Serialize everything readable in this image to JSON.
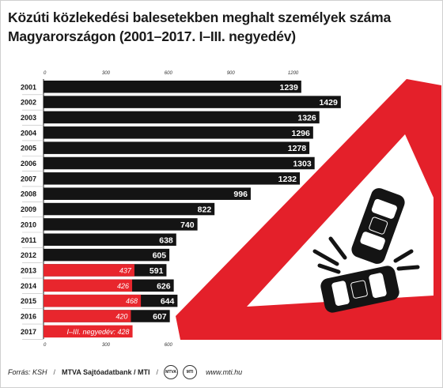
{
  "title_line1": "Közúti közlekedési balesetekben meghalt személyek száma",
  "title_line2": "Magyarországon (2001–2017. I–III. negyedév)",
  "chart_data": {
    "type": "bar",
    "orientation": "horizontal",
    "categories": [
      "2001",
      "2002",
      "2003",
      "2004",
      "2005",
      "2006",
      "2007",
      "2008",
      "2009",
      "2010",
      "2011",
      "2012",
      "2013",
      "2014",
      "2015",
      "2016",
      "2017"
    ],
    "series": [
      {
        "values": [
          1239,
          1429,
          1326,
          1296,
          1278,
          1303,
          1232,
          996,
          822,
          740,
          638,
          605,
          591,
          626,
          644,
          607,
          null
        ],
        "color": "#141414"
      },
      {
        "values": [
          null,
          null,
          null,
          null,
          null,
          null,
          null,
          null,
          null,
          null,
          null,
          null,
          437,
          426,
          468,
          420,
          428
        ],
        "color": "#e8262d"
      }
    ],
    "special_label_2017": "I–III. negyedév: 428",
    "x_ticks_top": [
      0,
      300,
      600,
      900,
      1200
    ],
    "x_ticks_bottom": [
      0,
      300,
      600
    ],
    "xlim": [
      0,
      1430
    ],
    "grid": false
  },
  "footer": {
    "source": "Forrás: KSH",
    "agency": "MTVA Sajtóadatbank / MTI",
    "logo1": "MTVA",
    "logo2": "MTI",
    "website": "www.mti.hu"
  },
  "colors": {
    "accent_red": "#e8262d",
    "bar_black": "#141414",
    "sign_red": "#e4202a"
  }
}
